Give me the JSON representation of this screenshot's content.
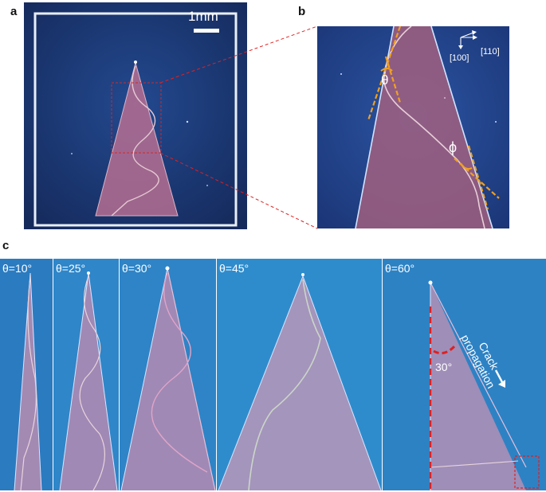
{
  "panels": {
    "a": {
      "letter": "a",
      "scale_bar_label": "1mm"
    },
    "b": {
      "letter": "b",
      "axis_primary": "[100]",
      "axis_secondary": "[110]",
      "angle_theta": "θ",
      "angle_phi": "ϕ"
    },
    "c": {
      "letter": "c",
      "strips": [
        {
          "label": "θ=10°"
        },
        {
          "label": "θ=25°"
        },
        {
          "label": "θ=30°"
        },
        {
          "label": "θ=45°"
        },
        {
          "label": "θ=60°"
        }
      ],
      "angle_annotation": "30°",
      "crack_label_line1": "Crack",
      "crack_label_line2": "propagation"
    }
  },
  "colors": {
    "substrate": "#1d3a78",
    "film": "#c27a9a",
    "crack": "#e0c8c8",
    "annotation_orange": "#f0a020",
    "zoom_lines": "#e02020"
  }
}
